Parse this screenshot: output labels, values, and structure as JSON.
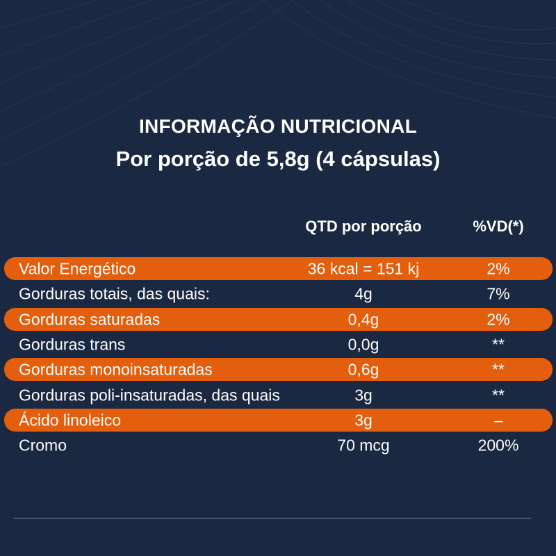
{
  "title": {
    "line1": "INFORMAÇÃO NUTRICIONAL",
    "line2": "Por porção de 5,8g (4 cápsulas)"
  },
  "columns": {
    "quantity": "QTD por porção",
    "daily_value": "%VD(*)"
  },
  "rows": [
    {
      "name": "Valor Energético",
      "qty": "36 kcal = 151 kj",
      "vd": "2%",
      "highlighted": true
    },
    {
      "name": "Gorduras totais, das quais:",
      "qty": "4g",
      "vd": "7%",
      "highlighted": false
    },
    {
      "name": "Gorduras saturadas",
      "qty": "0,4g",
      "vd": "2%",
      "highlighted": true
    },
    {
      "name": "Gorduras trans",
      "qty": "0,0g",
      "vd": "**",
      "highlighted": false
    },
    {
      "name": "Gorduras monoinsaturadas",
      "qty": "0,6g",
      "vd": "**",
      "highlighted": true
    },
    {
      "name": "Gorduras poli-insaturadas, das quais",
      "qty": "3g",
      "vd": "**",
      "highlighted": false
    },
    {
      "name": "Ácido linoleico",
      "qty": "3g",
      "vd": "–",
      "highlighted": true
    },
    {
      "name": "Cromo",
      "qty": "70 mcg",
      "vd": "200%",
      "highlighted": false
    }
  ],
  "colors": {
    "background": "#1a2842",
    "highlight": "#e35e0d",
    "text": "#ffffff"
  }
}
